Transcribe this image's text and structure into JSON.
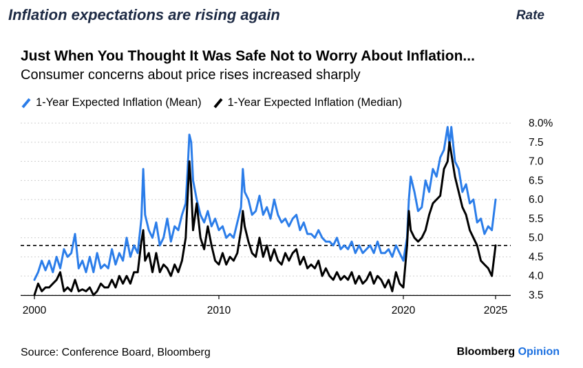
{
  "header": {
    "headline": "Inflation expectations are rising again",
    "category": "Rate"
  },
  "colors": {
    "mean": "#2b7de9",
    "median": "#000000",
    "grid": "#cfcfcf",
    "headline": "#1d2a44",
    "brand_accent": "#1a6fe0"
  },
  "footer": {
    "source": "Source: Conference Board, Bloomberg",
    "brand_main": "Bloomberg",
    "brand_accent": "Opinion"
  },
  "chart_data": {
    "type": "line",
    "title": "Just When You Thought It Was Safe Not to Worry About Inflation...",
    "subtitle": "Consumer concerns about price rises increased sharply",
    "xlabel": "",
    "ylabel": "",
    "xlim": [
      2000,
      2025.6
    ],
    "ylim": [
      3.5,
      8.0
    ],
    "x_ticks": [
      2000,
      2010,
      2020,
      2025
    ],
    "x_tick_labels": [
      "2000",
      "2010",
      "2020",
      "2025"
    ],
    "y_ticks": [
      3.5,
      4.0,
      4.5,
      5.0,
      5.5,
      6.0,
      6.5,
      7.0,
      7.5,
      8.0
    ],
    "y_tick_labels": [
      "3.5",
      "4.0",
      "4.5",
      "5.0",
      "5.5",
      "6.0",
      "6.5",
      "7.0",
      "7.5",
      "8.0%"
    ],
    "y_axis_side": "right",
    "grid": "horizontal dotted",
    "reference_line": {
      "value": 4.8,
      "style": "dashed"
    },
    "series": [
      {
        "name": "1-Year Expected Inflation (Mean)",
        "color": "#2b7de9",
        "points": [
          [
            2000.0,
            3.9
          ],
          [
            2000.2,
            4.1
          ],
          [
            2000.4,
            4.4
          ],
          [
            2000.6,
            4.15
          ],
          [
            2000.8,
            4.4
          ],
          [
            2001.0,
            4.1
          ],
          [
            2001.2,
            4.5
          ],
          [
            2001.4,
            4.2
          ],
          [
            2001.6,
            4.7
          ],
          [
            2001.8,
            4.5
          ],
          [
            2002.0,
            4.6
          ],
          [
            2002.2,
            5.1
          ],
          [
            2002.4,
            4.2
          ],
          [
            2002.6,
            4.4
          ],
          [
            2002.8,
            4.1
          ],
          [
            2003.0,
            4.5
          ],
          [
            2003.2,
            4.1
          ],
          [
            2003.4,
            4.6
          ],
          [
            2003.6,
            4.2
          ],
          [
            2003.8,
            4.3
          ],
          [
            2004.0,
            4.2
          ],
          [
            2004.2,
            4.7
          ],
          [
            2004.4,
            4.3
          ],
          [
            2004.6,
            4.6
          ],
          [
            2004.8,
            4.4
          ],
          [
            2005.0,
            5.0
          ],
          [
            2005.2,
            4.5
          ],
          [
            2005.4,
            4.8
          ],
          [
            2005.6,
            4.6
          ],
          [
            2005.8,
            5.5
          ],
          [
            2005.9,
            6.8
          ],
          [
            2006.0,
            5.6
          ],
          [
            2006.2,
            5.2
          ],
          [
            2006.4,
            5.0
          ],
          [
            2006.6,
            5.4
          ],
          [
            2006.8,
            4.8
          ],
          [
            2007.0,
            5.0
          ],
          [
            2007.2,
            5.5
          ],
          [
            2007.4,
            4.9
          ],
          [
            2007.6,
            5.3
          ],
          [
            2007.8,
            5.2
          ],
          [
            2008.0,
            5.6
          ],
          [
            2008.2,
            5.9
          ],
          [
            2008.3,
            6.7
          ],
          [
            2008.4,
            7.7
          ],
          [
            2008.5,
            7.5
          ],
          [
            2008.6,
            6.5
          ],
          [
            2008.8,
            6.0
          ],
          [
            2009.0,
            5.6
          ],
          [
            2009.2,
            5.4
          ],
          [
            2009.4,
            5.7
          ],
          [
            2009.6,
            5.3
          ],
          [
            2009.8,
            5.5
          ],
          [
            2010.0,
            5.2
          ],
          [
            2010.2,
            5.3
          ],
          [
            2010.4,
            5.0
          ],
          [
            2010.6,
            5.1
          ],
          [
            2010.8,
            5.0
          ],
          [
            2011.0,
            5.4
          ],
          [
            2011.2,
            5.8
          ],
          [
            2011.3,
            6.8
          ],
          [
            2011.4,
            6.2
          ],
          [
            2011.6,
            6.0
          ],
          [
            2011.8,
            5.6
          ],
          [
            2012.0,
            5.7
          ],
          [
            2012.2,
            6.1
          ],
          [
            2012.4,
            5.6
          ],
          [
            2012.6,
            5.8
          ],
          [
            2012.8,
            5.5
          ],
          [
            2013.0,
            6.0
          ],
          [
            2013.2,
            5.6
          ],
          [
            2013.4,
            5.4
          ],
          [
            2013.6,
            5.5
          ],
          [
            2013.8,
            5.3
          ],
          [
            2014.0,
            5.5
          ],
          [
            2014.2,
            5.6
          ],
          [
            2014.4,
            5.2
          ],
          [
            2014.6,
            5.4
          ],
          [
            2014.8,
            5.1
          ],
          [
            2015.0,
            5.1
          ],
          [
            2015.2,
            5.0
          ],
          [
            2015.4,
            5.2
          ],
          [
            2015.6,
            5.0
          ],
          [
            2015.8,
            4.9
          ],
          [
            2016.0,
            4.9
          ],
          [
            2016.2,
            4.8
          ],
          [
            2016.4,
            5.0
          ],
          [
            2016.6,
            4.7
          ],
          [
            2016.8,
            4.8
          ],
          [
            2017.0,
            4.7
          ],
          [
            2017.2,
            4.9
          ],
          [
            2017.4,
            4.6
          ],
          [
            2017.6,
            4.8
          ],
          [
            2017.8,
            4.6
          ],
          [
            2018.0,
            4.7
          ],
          [
            2018.2,
            4.8
          ],
          [
            2018.4,
            4.6
          ],
          [
            2018.6,
            4.9
          ],
          [
            2018.8,
            4.6
          ],
          [
            2019.0,
            4.6
          ],
          [
            2019.2,
            4.7
          ],
          [
            2019.4,
            4.5
          ],
          [
            2019.6,
            4.8
          ],
          [
            2019.8,
            4.6
          ],
          [
            2020.0,
            4.4
          ],
          [
            2020.2,
            5.0
          ],
          [
            2020.3,
            6.0
          ],
          [
            2020.4,
            6.6
          ],
          [
            2020.6,
            6.2
          ],
          [
            2020.8,
            5.7
          ],
          [
            2021.0,
            5.8
          ],
          [
            2021.2,
            6.5
          ],
          [
            2021.4,
            6.2
          ],
          [
            2021.6,
            6.8
          ],
          [
            2021.8,
            6.6
          ],
          [
            2022.0,
            7.1
          ],
          [
            2022.2,
            7.3
          ],
          [
            2022.4,
            7.9
          ],
          [
            2022.5,
            7.4
          ],
          [
            2022.6,
            7.9
          ],
          [
            2022.8,
            7.0
          ],
          [
            2023.0,
            6.8
          ],
          [
            2023.2,
            6.2
          ],
          [
            2023.4,
            6.4
          ],
          [
            2023.6,
            5.9
          ],
          [
            2023.8,
            6.0
          ],
          [
            2024.0,
            5.4
          ],
          [
            2024.2,
            5.5
          ],
          [
            2024.4,
            5.1
          ],
          [
            2024.6,
            5.3
          ],
          [
            2024.8,
            5.2
          ],
          [
            2025.0,
            6.0
          ]
        ]
      },
      {
        "name": "1-Year Expected Inflation (Median)",
        "color": "#000000",
        "points": [
          [
            2000.0,
            3.5
          ],
          [
            2000.2,
            3.8
          ],
          [
            2000.4,
            3.6
          ],
          [
            2000.6,
            3.7
          ],
          [
            2000.8,
            3.7
          ],
          [
            2001.0,
            3.8
          ],
          [
            2001.2,
            3.9
          ],
          [
            2001.4,
            4.1
          ],
          [
            2001.6,
            3.6
          ],
          [
            2001.8,
            3.7
          ],
          [
            2002.0,
            3.6
          ],
          [
            2002.2,
            3.9
          ],
          [
            2002.4,
            3.6
          ],
          [
            2002.6,
            3.65
          ],
          [
            2002.8,
            3.6
          ],
          [
            2003.0,
            3.7
          ],
          [
            2003.2,
            3.5
          ],
          [
            2003.4,
            3.6
          ],
          [
            2003.6,
            3.8
          ],
          [
            2003.8,
            3.7
          ],
          [
            2004.0,
            3.7
          ],
          [
            2004.2,
            3.9
          ],
          [
            2004.4,
            3.7
          ],
          [
            2004.6,
            4.0
          ],
          [
            2004.8,
            3.8
          ],
          [
            2005.0,
            4.0
          ],
          [
            2005.2,
            3.8
          ],
          [
            2005.4,
            4.1
          ],
          [
            2005.6,
            4.1
          ],
          [
            2005.8,
            4.9
          ],
          [
            2005.9,
            5.2
          ],
          [
            2006.0,
            4.4
          ],
          [
            2006.2,
            4.6
          ],
          [
            2006.4,
            4.1
          ],
          [
            2006.6,
            4.6
          ],
          [
            2006.8,
            4.1
          ],
          [
            2007.0,
            4.3
          ],
          [
            2007.2,
            4.2
          ],
          [
            2007.4,
            4.0
          ],
          [
            2007.6,
            4.3
          ],
          [
            2007.8,
            4.1
          ],
          [
            2008.0,
            4.4
          ],
          [
            2008.2,
            5.0
          ],
          [
            2008.3,
            6.0
          ],
          [
            2008.4,
            7.0
          ],
          [
            2008.5,
            6.3
          ],
          [
            2008.6,
            5.2
          ],
          [
            2008.8,
            5.9
          ],
          [
            2009.0,
            5.0
          ],
          [
            2009.2,
            4.7
          ],
          [
            2009.4,
            5.3
          ],
          [
            2009.6,
            4.8
          ],
          [
            2009.8,
            4.4
          ],
          [
            2010.0,
            4.3
          ],
          [
            2010.2,
            4.6
          ],
          [
            2010.4,
            4.3
          ],
          [
            2010.6,
            4.5
          ],
          [
            2010.8,
            4.4
          ],
          [
            2011.0,
            4.6
          ],
          [
            2011.2,
            5.2
          ],
          [
            2011.3,
            5.7
          ],
          [
            2011.4,
            5.3
          ],
          [
            2011.6,
            4.9
          ],
          [
            2011.8,
            4.6
          ],
          [
            2012.0,
            4.5
          ],
          [
            2012.2,
            5.0
          ],
          [
            2012.4,
            4.5
          ],
          [
            2012.6,
            4.8
          ],
          [
            2012.8,
            4.4
          ],
          [
            2013.0,
            4.7
          ],
          [
            2013.2,
            4.4
          ],
          [
            2013.4,
            4.3
          ],
          [
            2013.6,
            4.6
          ],
          [
            2013.8,
            4.4
          ],
          [
            2014.0,
            4.6
          ],
          [
            2014.2,
            4.7
          ],
          [
            2014.4,
            4.3
          ],
          [
            2014.6,
            4.5
          ],
          [
            2014.8,
            4.2
          ],
          [
            2015.0,
            4.3
          ],
          [
            2015.2,
            4.2
          ],
          [
            2015.4,
            4.4
          ],
          [
            2015.6,
            4.0
          ],
          [
            2015.8,
            4.2
          ],
          [
            2016.0,
            4.0
          ],
          [
            2016.2,
            3.9
          ],
          [
            2016.4,
            4.1
          ],
          [
            2016.6,
            3.9
          ],
          [
            2016.8,
            4.0
          ],
          [
            2017.0,
            3.9
          ],
          [
            2017.2,
            4.1
          ],
          [
            2017.4,
            3.8
          ],
          [
            2017.6,
            4.0
          ],
          [
            2017.8,
            3.8
          ],
          [
            2018.0,
            3.9
          ],
          [
            2018.2,
            4.1
          ],
          [
            2018.4,
            3.8
          ],
          [
            2018.6,
            4.0
          ],
          [
            2018.8,
            3.9
          ],
          [
            2019.0,
            3.7
          ],
          [
            2019.2,
            3.9
          ],
          [
            2019.4,
            3.6
          ],
          [
            2019.6,
            4.1
          ],
          [
            2019.8,
            3.8
          ],
          [
            2020.0,
            3.7
          ],
          [
            2020.2,
            4.8
          ],
          [
            2020.3,
            5.7
          ],
          [
            2020.4,
            5.2
          ],
          [
            2020.6,
            5.0
          ],
          [
            2020.8,
            4.9
          ],
          [
            2021.0,
            5.0
          ],
          [
            2021.2,
            5.2
          ],
          [
            2021.4,
            5.6
          ],
          [
            2021.6,
            5.9
          ],
          [
            2021.8,
            6.0
          ],
          [
            2022.0,
            6.1
          ],
          [
            2022.2,
            6.8
          ],
          [
            2022.4,
            7.0
          ],
          [
            2022.5,
            7.5
          ],
          [
            2022.6,
            7.2
          ],
          [
            2022.8,
            6.6
          ],
          [
            2023.0,
            6.2
          ],
          [
            2023.2,
            5.8
          ],
          [
            2023.4,
            5.6
          ],
          [
            2023.6,
            5.2
          ],
          [
            2023.8,
            5.0
          ],
          [
            2024.0,
            4.8
          ],
          [
            2024.2,
            4.4
          ],
          [
            2024.4,
            4.3
          ],
          [
            2024.6,
            4.2
          ],
          [
            2024.8,
            4.0
          ],
          [
            2025.0,
            4.8
          ]
        ]
      }
    ]
  }
}
